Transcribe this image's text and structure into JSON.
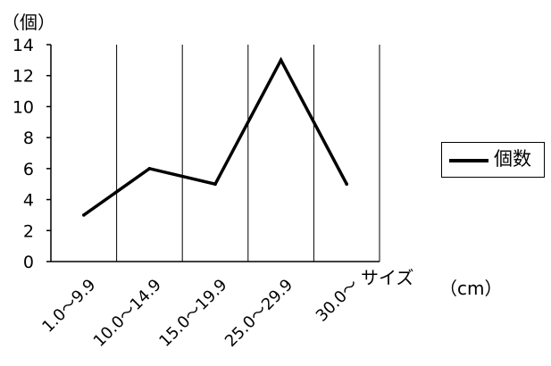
{
  "chart_data": {
    "type": "line",
    "ylabel": "（個）",
    "xlabel": "サイズ",
    "unit_label": "（cm）",
    "categories": [
      "1.0～9.9",
      "10.0～14.9",
      "15.0～19.9",
      "25.0～29.9",
      "30.0～"
    ],
    "y_ticks": [
      "0",
      "2",
      "4",
      "6",
      "8",
      "10",
      "12",
      "14"
    ],
    "ylim": [
      0,
      14
    ],
    "series": [
      {
        "name": "個数",
        "values": [
          3,
          6,
          5,
          13,
          5
        ],
        "color": "#000000"
      }
    ],
    "grid": "vertical-lines",
    "legend_position": "right"
  }
}
